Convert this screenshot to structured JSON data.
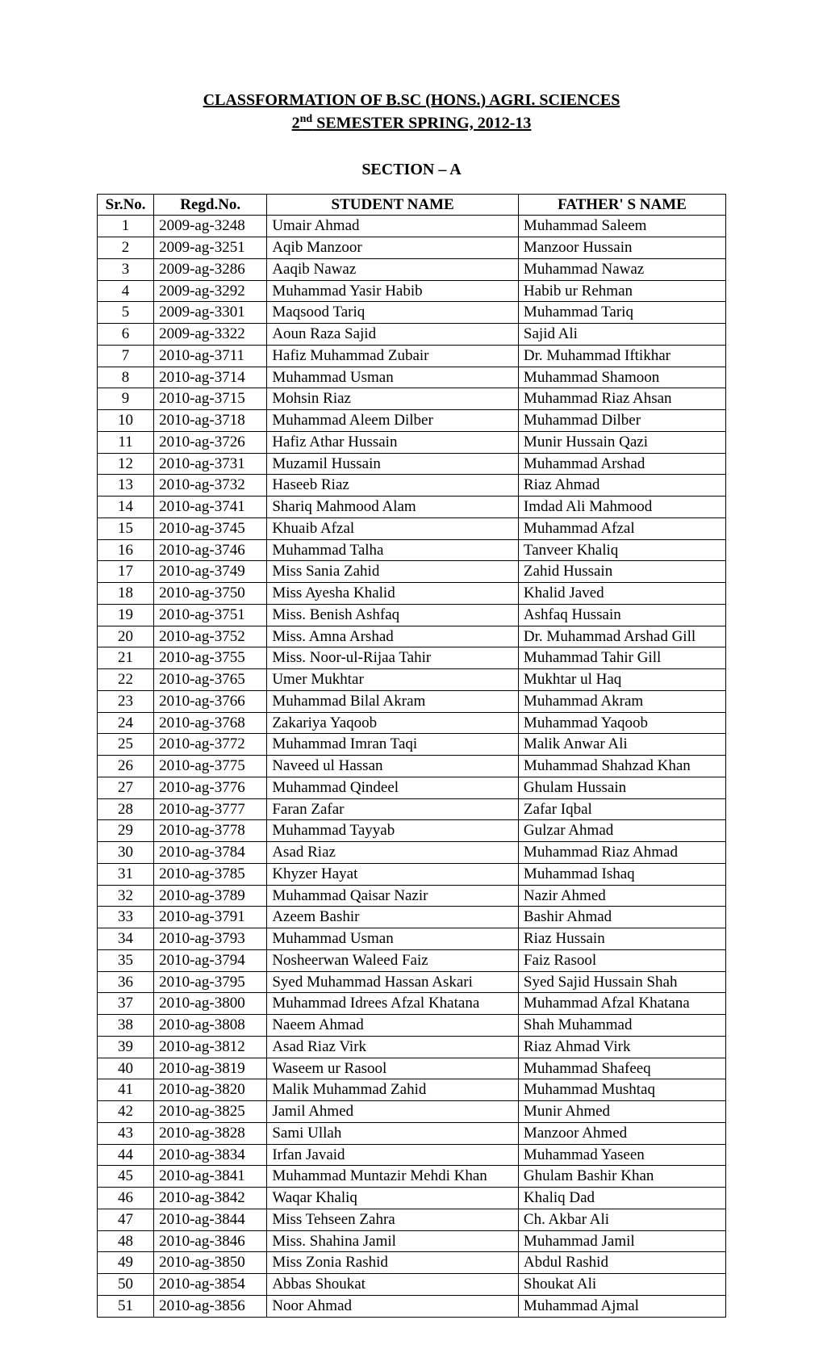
{
  "heading": {
    "line1": "CLASSFORMATION OF B.SC (HONS.) AGRI. SCIENCES",
    "line2_prefix": "2",
    "line2_suffix": "nd",
    "line2_rest": " SEMESTER SPRING, 2012-13"
  },
  "section_label": "SECTION – A",
  "table": {
    "headers": {
      "srno": "Sr.No.",
      "regd": "Regd.No.",
      "student": "STUDENT NAME",
      "father": "FATHER' S NAME"
    },
    "rows": [
      {
        "sr": "1",
        "regd": "2009-ag-3248",
        "student": "Umair Ahmad",
        "father": "Muhammad Saleem"
      },
      {
        "sr": "2",
        "regd": "2009-ag-3251",
        "student": "Aqib Manzoor",
        "father": "Manzoor Hussain"
      },
      {
        "sr": "3",
        "regd": "2009-ag-3286",
        "student": "Aaqib Nawaz",
        "father": "Muhammad Nawaz"
      },
      {
        "sr": "4",
        "regd": "2009-ag-3292",
        "student": "Muhammad Yasir Habib",
        "father": "Habib ur Rehman"
      },
      {
        "sr": "5",
        "regd": "2009-ag-3301",
        "student": "Maqsood Tariq",
        "father": "Muhammad Tariq"
      },
      {
        "sr": "6",
        "regd": "2009-ag-3322",
        "student": "Aoun Raza Sajid",
        "father": "Sajid Ali"
      },
      {
        "sr": "7",
        "regd": "2010-ag-3711",
        "student": "Hafiz Muhammad Zubair",
        "father": "Dr. Muhammad Iftikhar"
      },
      {
        "sr": "8",
        "regd": "2010-ag-3714",
        "student": "Muhammad Usman",
        "father": "Muhammad Shamoon"
      },
      {
        "sr": "9",
        "regd": "2010-ag-3715",
        "student": "Mohsin Riaz",
        "father": "Muhammad Riaz Ahsan"
      },
      {
        "sr": "10",
        "regd": "2010-ag-3718",
        "student": "Muhammad Aleem Dilber",
        "father": "Muhammad Dilber"
      },
      {
        "sr": "11",
        "regd": "2010-ag-3726",
        "student": "Hafiz Athar Hussain",
        "father": "Munir Hussain Qazi"
      },
      {
        "sr": "12",
        "regd": "2010-ag-3731",
        "student": "Muzamil Hussain",
        "father": "Muhammad Arshad"
      },
      {
        "sr": "13",
        "regd": "2010-ag-3732",
        "student": "Haseeb Riaz",
        "father": "Riaz Ahmad"
      },
      {
        "sr": "14",
        "regd": "2010-ag-3741",
        "student": "Shariq Mahmood Alam",
        "father": "Imdad Ali Mahmood"
      },
      {
        "sr": "15",
        "regd": "2010-ag-3745",
        "student": "Khuaib Afzal",
        "father": "Muhammad Afzal"
      },
      {
        "sr": "16",
        "regd": "2010-ag-3746",
        "student": "Muhammad Talha",
        "father": "Tanveer Khaliq"
      },
      {
        "sr": "17",
        "regd": "2010-ag-3749",
        "student": "Miss Sania Zahid",
        "father": "Zahid Hussain"
      },
      {
        "sr": "18",
        "regd": "2010-ag-3750",
        "student": "Miss Ayesha Khalid",
        "father": "Khalid Javed"
      },
      {
        "sr": "19",
        "regd": "2010-ag-3751",
        "student": "Miss. Benish Ashfaq",
        "father": "Ashfaq Hussain"
      },
      {
        "sr": "20",
        "regd": "2010-ag-3752",
        "student": "Miss. Amna Arshad",
        "father": "Dr. Muhammad Arshad Gill"
      },
      {
        "sr": "21",
        "regd": "2010-ag-3755",
        "student": "Miss. Noor-ul-Rijaa Tahir",
        "father": "Muhammad Tahir Gill"
      },
      {
        "sr": "22",
        "regd": "2010-ag-3765",
        "student": "Umer Mukhtar",
        "father": "Mukhtar ul Haq"
      },
      {
        "sr": "23",
        "regd": "2010-ag-3766",
        "student": "Muhammad Bilal Akram",
        "father": "Muhammad Akram"
      },
      {
        "sr": "24",
        "regd": "2010-ag-3768",
        "student": "Zakariya Yaqoob",
        "father": "Muhammad Yaqoob"
      },
      {
        "sr": "25",
        "regd": "2010-ag-3772",
        "student": "Muhammad Imran Taqi",
        "father": "Malik Anwar Ali"
      },
      {
        "sr": "26",
        "regd": "2010-ag-3775",
        "student": "Naveed ul Hassan",
        "father": "Muhammad Shahzad Khan"
      },
      {
        "sr": "27",
        "regd": "2010-ag-3776",
        "student": "Muhammad Qindeel",
        "father": "Ghulam Hussain"
      },
      {
        "sr": "28",
        "regd": "2010-ag-3777",
        "student": "Faran Zafar",
        "father": "Zafar Iqbal"
      },
      {
        "sr": "29",
        "regd": "2010-ag-3778",
        "student": "Muhammad Tayyab",
        "father": "Gulzar Ahmad"
      },
      {
        "sr": "30",
        "regd": "2010-ag-3784",
        "student": "Asad Riaz",
        "father": "Muhammad Riaz Ahmad"
      },
      {
        "sr": "31",
        "regd": "2010-ag-3785",
        "student": "Khyzer Hayat",
        "father": "Muhammad Ishaq"
      },
      {
        "sr": "32",
        "regd": "2010-ag-3789",
        "student": "Muhammad Qaisar Nazir",
        "father": "Nazir Ahmed"
      },
      {
        "sr": "33",
        "regd": "2010-ag-3791",
        "student": "Azeem Bashir",
        "father": "Bashir Ahmad"
      },
      {
        "sr": "34",
        "regd": "2010-ag-3793",
        "student": "Muhammad Usman",
        "father": "Riaz Hussain"
      },
      {
        "sr": "35",
        "regd": "2010-ag-3794",
        "student": "Nosheerwan Waleed Faiz",
        "father": "Faiz Rasool"
      },
      {
        "sr": "36",
        "regd": "2010-ag-3795",
        "student": "Syed Muhammad Hassan Askari",
        "father": "Syed Sajid Hussain Shah"
      },
      {
        "sr": "37",
        "regd": "2010-ag-3800",
        "student": "Muhammad Idrees Afzal Khatana",
        "father": "Muhammad Afzal Khatana"
      },
      {
        "sr": "38",
        "regd": "2010-ag-3808",
        "student": "Naeem Ahmad",
        "father": "Shah Muhammad"
      },
      {
        "sr": "39",
        "regd": "2010-ag-3812",
        "student": "Asad Riaz Virk",
        "father": "Riaz Ahmad Virk"
      },
      {
        "sr": "40",
        "regd": "2010-ag-3819",
        "student": "Waseem ur Rasool",
        "father": "Muhammad Shafeeq"
      },
      {
        "sr": "41",
        "regd": "2010-ag-3820",
        "student": "Malik Muhammad Zahid",
        "father": "Muhammad Mushtaq"
      },
      {
        "sr": "42",
        "regd": "2010-ag-3825",
        "student": "Jamil Ahmed",
        "father": "Munir Ahmed"
      },
      {
        "sr": "43",
        "regd": "2010-ag-3828",
        "student": "Sami Ullah",
        "father": "Manzoor Ahmed"
      },
      {
        "sr": "44",
        "regd": "2010-ag-3834",
        "student": "Irfan Javaid",
        "father": "Muhammad Yaseen"
      },
      {
        "sr": "45",
        "regd": "2010-ag-3841",
        "student": "Muhammad Muntazir Mehdi Khan",
        "father": "Ghulam Bashir Khan"
      },
      {
        "sr": "46",
        "regd": "2010-ag-3842",
        "student": "Waqar Khaliq",
        "father": "Khaliq Dad"
      },
      {
        "sr": "47",
        "regd": "2010-ag-3844",
        "student": "Miss Tehseen Zahra",
        "father": "Ch. Akbar Ali"
      },
      {
        "sr": "48",
        "regd": "2010-ag-3846",
        "student": "Miss. Shahina Jamil",
        "father": "Muhammad Jamil"
      },
      {
        "sr": "49",
        "regd": "2010-ag-3850",
        "student": "Miss Zonia Rashid",
        "father": "Abdul Rashid"
      },
      {
        "sr": "50",
        "regd": "2010-ag-3854",
        "student": "Abbas Shoukat",
        "father": "Shoukat Ali"
      },
      {
        "sr": "51",
        "regd": "2010-ag-3856",
        "student": "Noor Ahmad",
        "father": "Muhammad Ajmal"
      }
    ]
  }
}
